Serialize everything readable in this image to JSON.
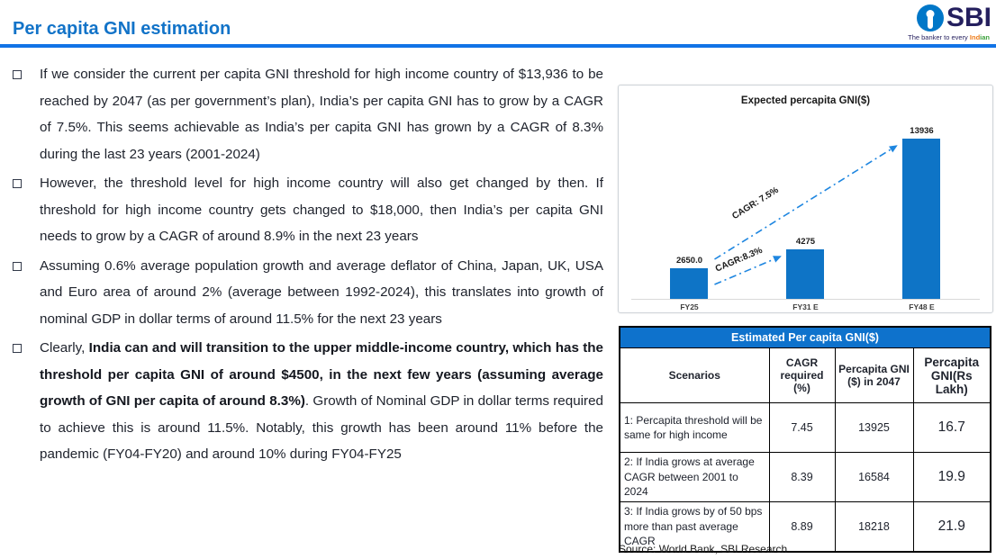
{
  "header": {
    "title": "Per capita GNI estimation",
    "logo": {
      "brand": "SBI",
      "tagline_prefix": "The banker to every ",
      "tagline_accent_1": "Ind",
      "tagline_accent_2": "ian"
    }
  },
  "bullets": [
    {
      "segments": [
        {
          "bold": false,
          "text": "If we consider the current per capita GNI threshold for high income country of $13,936 to be reached by 2047 (as per government’s plan), India’s per capita GNI has to grow by a CAGR of 7.5%. This seems achievable as India’s per capita GNI has grown by a CAGR of 8.3% during the last 23 years (2001-2024)"
        }
      ]
    },
    {
      "segments": [
        {
          "bold": false,
          "text": "However, the threshold level for high income country will also get changed by then. If threshold for high income country gets changed to $18,000, then India’s per capita GNI needs to grow by a CAGR of around 8.9% in the next 23 years"
        }
      ]
    },
    {
      "segments": [
        {
          "bold": false,
          "text": "Assuming 0.6% average population growth and average deflator of China, Japan, UK, USA and Euro area of around 2% (average between 1992-2024), this translates into growth of nominal GDP in dollar terms of around 11.5% for the next 23 years"
        }
      ]
    },
    {
      "segments": [
        {
          "bold": false,
          "text": "Clearly, "
        },
        {
          "bold": true,
          "text": "India can and will transition to the upper middle-income country, which has the threshold per capita GNI of around $4500, in the next few years (assuming average growth of GNI per capita of around 8.3%)"
        },
        {
          "bold": false,
          "text": ". Growth of Nominal GDP in dollar terms required to achieve this is around 11.5%. Notably, this growth has been around 11% before the pandemic (FY04-FY20) and around 10% during FY04-FY25"
        }
      ]
    }
  ],
  "chart_data": {
    "type": "bar",
    "title": "Expected percapita GNI($)",
    "categories": [
      "FY25",
      "FY31 E",
      "FY48 E"
    ],
    "values": [
      2650.0,
      4275,
      13936
    ],
    "value_labels": [
      "2650.0",
      "4275",
      "13936"
    ],
    "xlabel": "",
    "ylabel": "",
    "ylim": [
      0,
      14500
    ],
    "grid": false,
    "legend": "none",
    "bar_color": "#0e74c6",
    "annotations": [
      {
        "label": "CAGR: 7.5%",
        "from": 0,
        "to": 2,
        "from_anchor": "top",
        "t": 0.3,
        "offset": 26
      },
      {
        "label": "CAGR:8.3%",
        "from": 0,
        "to": 1,
        "from_anchor": "bottom",
        "t": 0.45,
        "offset": 12
      }
    ]
  },
  "table": {
    "title": "Estimated Per capita GNI($)",
    "columns": [
      "Scenarios",
      "CAGR required (%)",
      "Percapita GNI ($) in 2047",
      "Percapita GNI(Rs Lakh)"
    ],
    "rows": [
      {
        "scenario": "1: Percapita threshold will be same for high income",
        "cagr_required_pct": "7.45",
        "percapita_gni_2047": "13925",
        "percapita_gni_rs_lakh": "16.7"
      },
      {
        "scenario": "2: If India grows at average CAGR between 2001 to 2024",
        "cagr_required_pct": "8.39",
        "percapita_gni_2047": "16584",
        "percapita_gni_rs_lakh": "19.9"
      },
      {
        "scenario": "3: If India grows by of 50 bps more than past average CAGR",
        "cagr_required_pct": "8.89",
        "percapita_gni_2047": "18218",
        "percapita_gni_rs_lakh": "21.9"
      }
    ],
    "source": "Source: World Bank, SBI Research"
  },
  "colors": {
    "accent_blue": "#1273c8",
    "divider_blue": "#1173e6",
    "bar_blue": "#0e74c6",
    "arrow_blue": "#1e86e0",
    "table_header_bg": "#0e72cc",
    "logo_navy": "#241f5e",
    "text_dark": "#20242e"
  }
}
